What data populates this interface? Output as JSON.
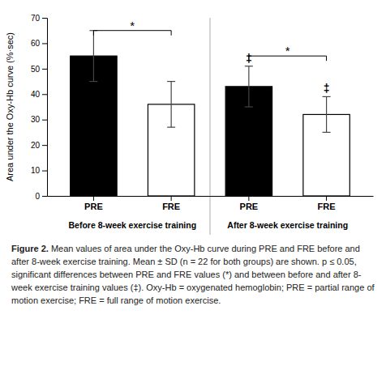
{
  "chart_data": {
    "type": "bar",
    "ylabel": "Area under the Oxy-Hb curve (%·sec)",
    "categories": [
      "PRE",
      "FRE",
      "PRE",
      "FRE"
    ],
    "groups": [
      "Before 8-week exercise training",
      "After 8-week exercise training"
    ],
    "values": [
      55,
      36,
      43,
      32
    ],
    "errors": [
      10,
      9,
      8,
      7
    ],
    "colors": [
      "#000000",
      "#ffffff",
      "#000000",
      "#ffffff"
    ],
    "ylim": [
      0,
      70
    ],
    "yticks": [
      0,
      10,
      20,
      30,
      40,
      50,
      60,
      70
    ],
    "grid": false,
    "annotations": [
      {
        "text": "*",
        "bars": [
          0,
          1
        ],
        "y": 65
      },
      {
        "text": "*",
        "bars": [
          2,
          3
        ],
        "y": 55
      },
      {
        "text": "‡",
        "bar": 2
      },
      {
        "text": "‡",
        "bar": 3
      }
    ],
    "caption_label": "Figure 2.",
    "caption": "Mean values of area under the Oxy-Hb curve during PRE and FRE before and after 8-week exercise training. Mean ± SD (n = 22 for both groups) are shown. p ≤ 0.05, significant differences between PRE and FRE values (*) and between before and after 8-week exercise training values (‡). Oxy-Hb = oxygenated hemoglobin; PRE = partial range of motion exercise; FRE = full range of motion exercise."
  }
}
